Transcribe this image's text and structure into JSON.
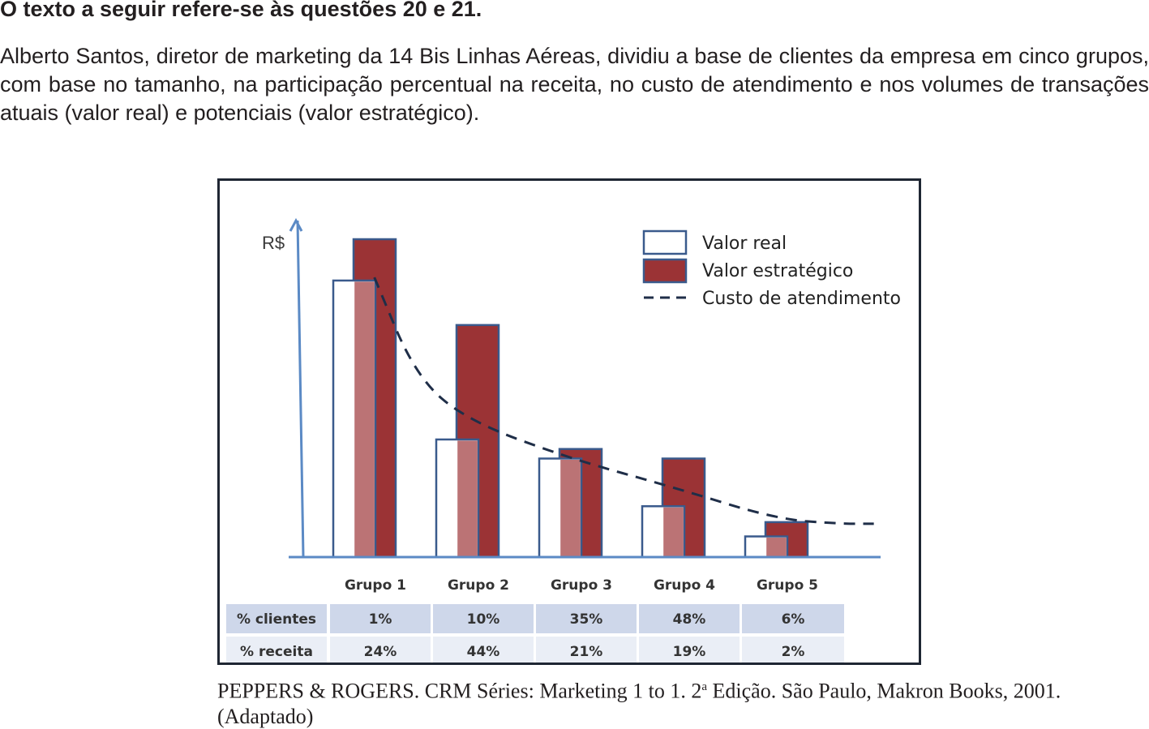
{
  "heading": "O texto a seguir refere-se às questões 20 e 21.",
  "intro": "Alberto Santos, diretor de marketing da 14 Bis Linhas Aéreas, dividiu a base de clientes da empresa em cinco grupos, com base no tamanho, na participação percentual na receita, no custo de atendimento e nos volumes de transações atuais (valor real) e potenciais (valor estratégico).",
  "citation": {
    "before": "PEPPERS & ROGERS. CRM Séries: Marketing 1 to 1. 2",
    "sup": "a",
    "after": " Edição. São Paulo, Makron Books, 2001. (Adaptado)"
  },
  "chart_data": {
    "type": "bar",
    "ylabel": "R$",
    "categories": [
      "Grupo 1",
      "Grupo 2",
      "Grupo 3",
      "Grupo 4",
      "Grupo 5"
    ],
    "ylim": [
      0,
      100
    ],
    "grid": false,
    "legend_position": "top-right",
    "series": [
      {
        "name": "Valor real",
        "kind": "bar",
        "values": [
          87,
          37,
          31,
          16,
          6.5
        ]
      },
      {
        "name": "Valor estratégico",
        "kind": "bar",
        "values": [
          100,
          73,
          34,
          31,
          11
        ]
      },
      {
        "name": "Custo de atendimento",
        "kind": "dashed-line",
        "x": [
          0.6,
          1.0,
          1.5,
          2.5,
          3.5,
          4.5,
          5.1,
          5.45
        ],
        "values": [
          88,
          57,
          43,
          31,
          22,
          12,
          10.5,
          10.5
        ]
      }
    ],
    "colors": {
      "valor_real_fill": "#ffffff",
      "valor_estrategico_fill": "#9b3335",
      "overlap_fill": "#bb7375",
      "bar_border": "#3a5a8c",
      "axis": "#5b8ac5",
      "line": "#1f2e48"
    },
    "table": {
      "rows": [
        {
          "label": "% clientes",
          "values": [
            "1%",
            "10%",
            "35%",
            "48%",
            "6%"
          ]
        },
        {
          "label": "% receita",
          "values": [
            "24%",
            "44%",
            "21%",
            "19%",
            "2%"
          ]
        }
      ]
    }
  }
}
